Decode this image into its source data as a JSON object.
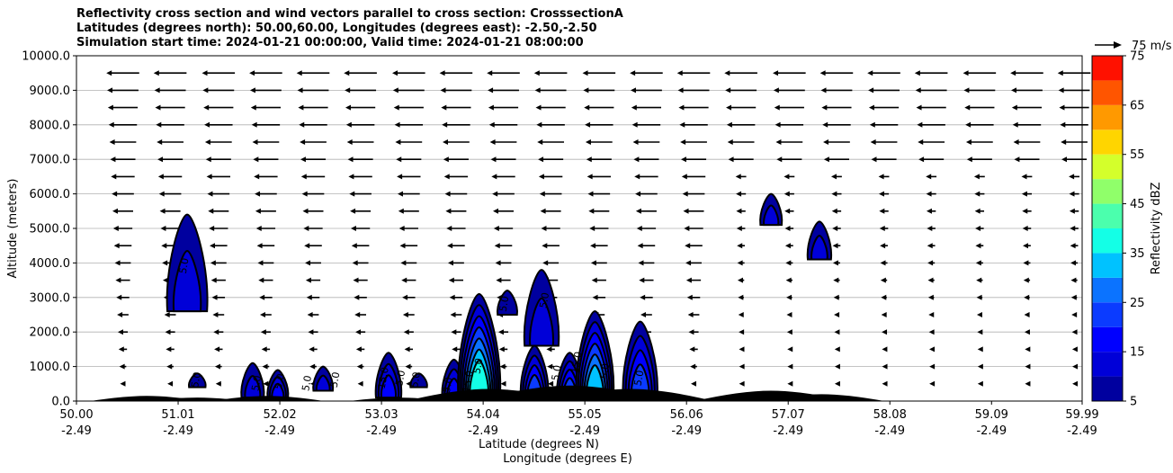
{
  "chart_data": {
    "type": "heatmap",
    "title_lines": [
      "Reflectivity cross section and wind vectors parallel to cross section: CrosssectionA",
      "Latitudes (degrees north): 50.00,60.00, Longitudes (degrees east): -2.50,-2.50",
      "Simulation start time: 2024-01-21 00:00:00, Valid time: 2024-01-21 08:00:00"
    ],
    "ylabel": "Altitude (meters)",
    "xlabel_lat": "Latitude (degrees N)",
    "xlabel_lon": "Longitude (degrees E)",
    "ylim": [
      0,
      10000
    ],
    "yticks": [
      "0.0",
      "1000.0",
      "2000.0",
      "3000.0",
      "4000.0",
      "5000.0",
      "6000.0",
      "7000.0",
      "8000.0",
      "9000.0",
      "10000.0"
    ],
    "xlim": [
      50.0,
      59.99
    ],
    "xticks_lat": [
      "50.00",
      "51.01",
      "52.02",
      "53.03",
      "54.04",
      "55.05",
      "56.06",
      "57.07",
      "58.08",
      "59.09",
      "59.99"
    ],
    "xticks_lon": [
      "-2.49",
      "-2.49",
      "-2.49",
      "-2.49",
      "-2.49",
      "-2.49",
      "-2.49",
      "-2.49",
      "-2.49",
      "-2.49",
      "-2.49"
    ],
    "grid": "horizontal",
    "colorbar": {
      "label": "Reflectivity dBZ",
      "ticks": [
        "5",
        "15",
        "25",
        "35",
        "45",
        "55",
        "65",
        "75"
      ],
      "levels": [
        5,
        10,
        15,
        20,
        25,
        30,
        35,
        40,
        45,
        50,
        55,
        60,
        65,
        70,
        75
      ],
      "colors": [
        "#00009f",
        "#0000d8",
        "#0000ff",
        "#0b3bff",
        "#0b73ff",
        "#00c2ff",
        "#14ffe6",
        "#4bffad",
        "#90ff6a",
        "#d4ff2b",
        "#ffd500",
        "#ff9900",
        "#ff5500",
        "#ff1100",
        "#a50000"
      ]
    },
    "wind_key": {
      "label": "75 m/s"
    },
    "contour_labels": [
      "5.0",
      "5.0",
      "5.0",
      "5.0",
      "5.0",
      "5.0",
      "15.0",
      "5.0",
      "5.0",
      "5.0",
      "15.0",
      "5.0",
      "5.0",
      "5.0",
      "5.0",
      "15.0",
      "5.0",
      "5.0"
    ],
    "echoes": [
      {
        "lat": 51.1,
        "base": 2600,
        "top": 5400,
        "max_dbz": 10
      },
      {
        "lat": 51.2,
        "base": 400,
        "top": 800,
        "max_dbz": 5
      },
      {
        "lat": 51.75,
        "base": 100,
        "top": 1100,
        "max_dbz": 10
      },
      {
        "lat": 52.0,
        "base": 100,
        "top": 900,
        "max_dbz": 15
      },
      {
        "lat": 52.45,
        "base": 300,
        "top": 1000,
        "max_dbz": 10
      },
      {
        "lat": 53.1,
        "base": 100,
        "top": 1400,
        "max_dbz": 15
      },
      {
        "lat": 53.4,
        "base": 400,
        "top": 800,
        "max_dbz": 5
      },
      {
        "lat": 53.75,
        "base": 100,
        "top": 1200,
        "max_dbz": 15
      },
      {
        "lat": 54.0,
        "base": 100,
        "top": 3100,
        "max_dbz": 35
      },
      {
        "lat": 54.28,
        "base": 2500,
        "top": 3200,
        "max_dbz": 5
      },
      {
        "lat": 54.55,
        "base": 100,
        "top": 1600,
        "max_dbz": 20
      },
      {
        "lat": 54.62,
        "base": 1600,
        "top": 3800,
        "max_dbz": 10
      },
      {
        "lat": 54.9,
        "base": 100,
        "top": 1400,
        "max_dbz": 20
      },
      {
        "lat": 55.15,
        "base": 100,
        "top": 2600,
        "max_dbz": 30
      },
      {
        "lat": 55.6,
        "base": 100,
        "top": 2300,
        "max_dbz": 20
      },
      {
        "lat": 56.9,
        "base": 5100,
        "top": 6000,
        "max_dbz": 10
      },
      {
        "lat": 57.38,
        "base": 4100,
        "top": 5200,
        "max_dbz": 10
      }
    ],
    "terrain": [
      {
        "lat": 50.7,
        "height": 150
      },
      {
        "lat": 51.2,
        "height": 100
      },
      {
        "lat": 51.9,
        "height": 150
      },
      {
        "lat": 53.2,
        "height": 100
      },
      {
        "lat": 54.1,
        "height": 350
      },
      {
        "lat": 54.9,
        "height": 450
      },
      {
        "lat": 55.5,
        "height": 350
      },
      {
        "lat": 56.9,
        "height": 300
      },
      {
        "lat": 57.4,
        "height": 200
      }
    ],
    "wind_rows_m": [
      500,
      1000,
      1500,
      2000,
      2500,
      3000,
      3500,
      4000,
      4500,
      5000,
      5500,
      6000,
      6500,
      7000,
      7500,
      8000,
      8500,
      9000,
      9500
    ],
    "wind_cols_lat": [
      50.46,
      50.93,
      51.41,
      51.88,
      52.35,
      52.82,
      53.3,
      53.77,
      54.24,
      54.71,
      55.19,
      55.66,
      56.13,
      56.6,
      57.08,
      57.55,
      58.02,
      58.49,
      58.97,
      59.44,
      59.91
    ]
  }
}
